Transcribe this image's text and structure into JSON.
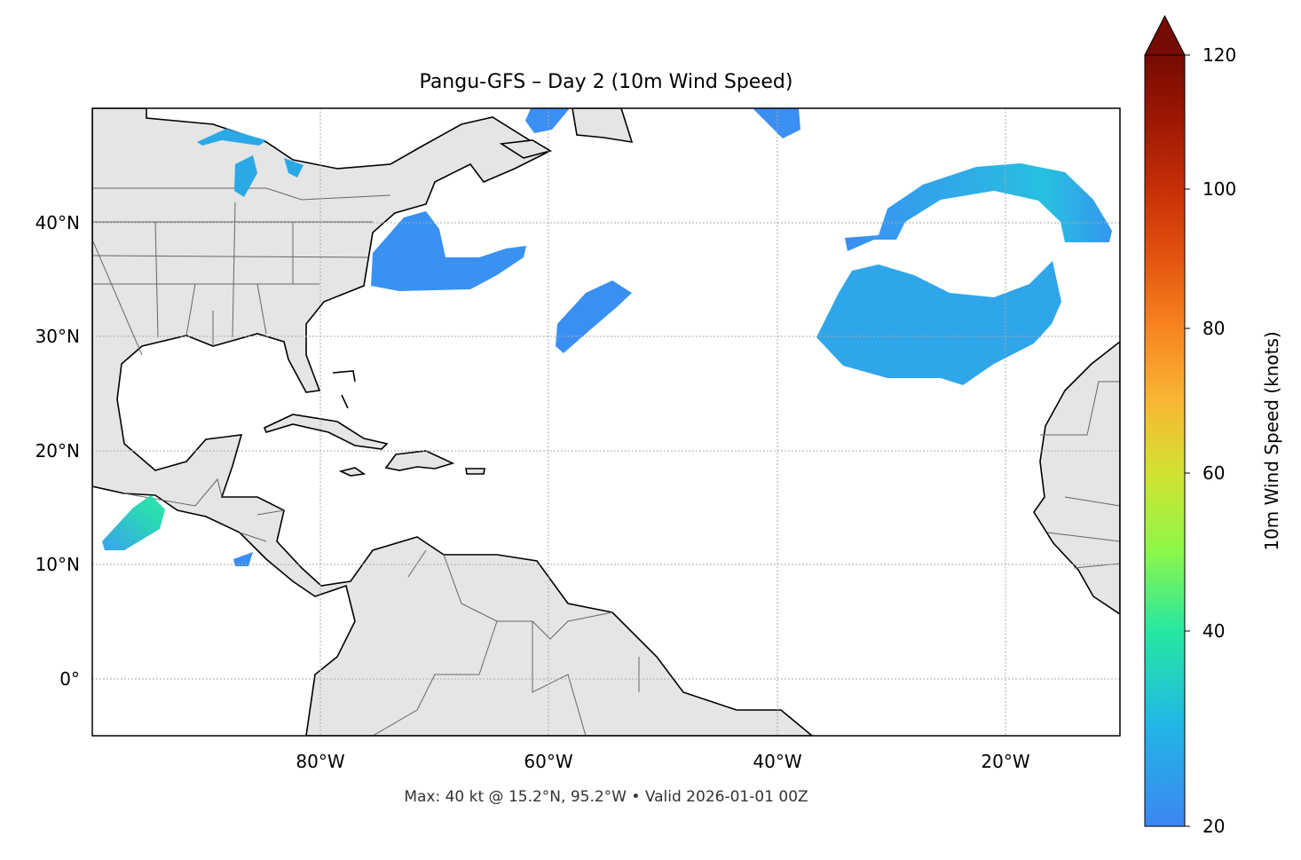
{
  "title": "Pangu-GFS – Day 2 (10m Wind Speed)",
  "footer": "Max: 40 kt @ 15.2°N, 95.2°W • Valid 2026-01-01 00Z",
  "chart_data": {
    "type": "heatmap",
    "title": "Pangu-GFS – Day 2 (10m Wind Speed)",
    "projection": "plate-carree",
    "extent": {
      "lon": [
        -100,
        -10
      ],
      "lat": [
        -5,
        50
      ]
    },
    "grid": true,
    "lon_ticks": [
      -80,
      -60,
      -40,
      -20
    ],
    "lat_ticks": [
      0,
      10,
      20,
      30,
      40
    ],
    "lon_tick_labels": [
      "80°W",
      "60°W",
      "40°W",
      "20°W"
    ],
    "lat_tick_labels": [
      "0°",
      "10°N",
      "20°N",
      "30°N",
      "40°N"
    ],
    "field": "10m Wind Speed",
    "max": {
      "value_kt": 40,
      "lat": 15.2,
      "lon": -95.2
    },
    "valid": "2026-01-01 00Z",
    "colorbar": {
      "label": "10m Wind Speed (knots)",
      "range": [
        20,
        120
      ],
      "ticks": [
        20,
        40,
        60,
        80,
        100,
        120
      ],
      "tick_labels": [
        "20",
        "40",
        "60",
        "80",
        "100",
        "120"
      ],
      "extend": "max",
      "colormap": "turbo"
    },
    "colors": {
      "land": "#e5e5e5",
      "ocean": "#ffffff",
      "coast": "#000000",
      "borders": "#666666",
      "wind_low": "#3d8af2",
      "wind_mid": "#28c4dd",
      "wind_40": "#2ee6a4"
    }
  }
}
